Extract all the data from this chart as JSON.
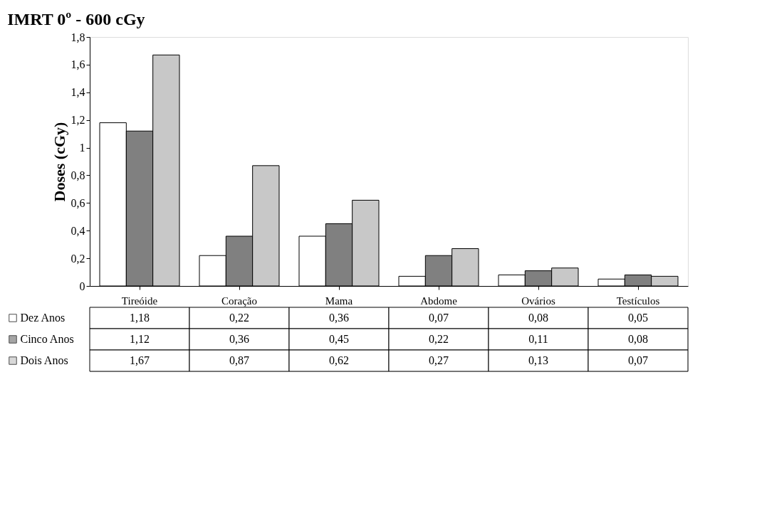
{
  "chart_data": {
    "type": "bar",
    "title": "IMRT 0º - 600 cGy",
    "ylabel": "Doses (cGy)",
    "categories": [
      "Tireóide",
      "Coração",
      "Mama",
      "Abdome",
      "Ovários",
      "Testículos"
    ],
    "series": [
      {
        "name": "Dez Anos",
        "color": "#ffffff",
        "values": [
          1.18,
          0.22,
          0.36,
          0.07,
          0.08,
          0.05
        ],
        "value_labels": [
          "1,18",
          "0,22",
          "0,36",
          "0,07",
          "0,08",
          "0,05"
        ]
      },
      {
        "name": "Cinco Anos",
        "color": "#808080",
        "values": [
          1.12,
          0.36,
          0.45,
          0.22,
          0.11,
          0.08
        ],
        "value_labels": [
          "1,12",
          "0,36",
          "0,45",
          "0,22",
          "0,11",
          "0,08"
        ]
      },
      {
        "name": "Dois Anos",
        "color": "#c8c8c8",
        "values": [
          1.67,
          0.87,
          0.62,
          0.27,
          0.13,
          0.07
        ],
        "value_labels": [
          "1,67",
          "0,87",
          "0,62",
          "0,27",
          "0,13",
          "0,07"
        ]
      }
    ],
    "ylim": [
      0,
      1.8
    ],
    "yticks": [
      0,
      {
        "value": 0.2,
        "label": "0,2"
      },
      {
        "value": 0.4,
        "label": "0,4"
      },
      {
        "value": 0.6,
        "label": "0,6"
      },
      {
        "value": 0.8,
        "label": "0,8"
      },
      1,
      {
        "value": 1.2,
        "label": "1,2"
      },
      {
        "value": 1.4,
        "label": "1,4"
      },
      {
        "value": 1.6,
        "label": "1,6"
      },
      {
        "value": 1.8,
        "label": "1,8"
      }
    ],
    "grid": false,
    "legend": "bottom"
  }
}
